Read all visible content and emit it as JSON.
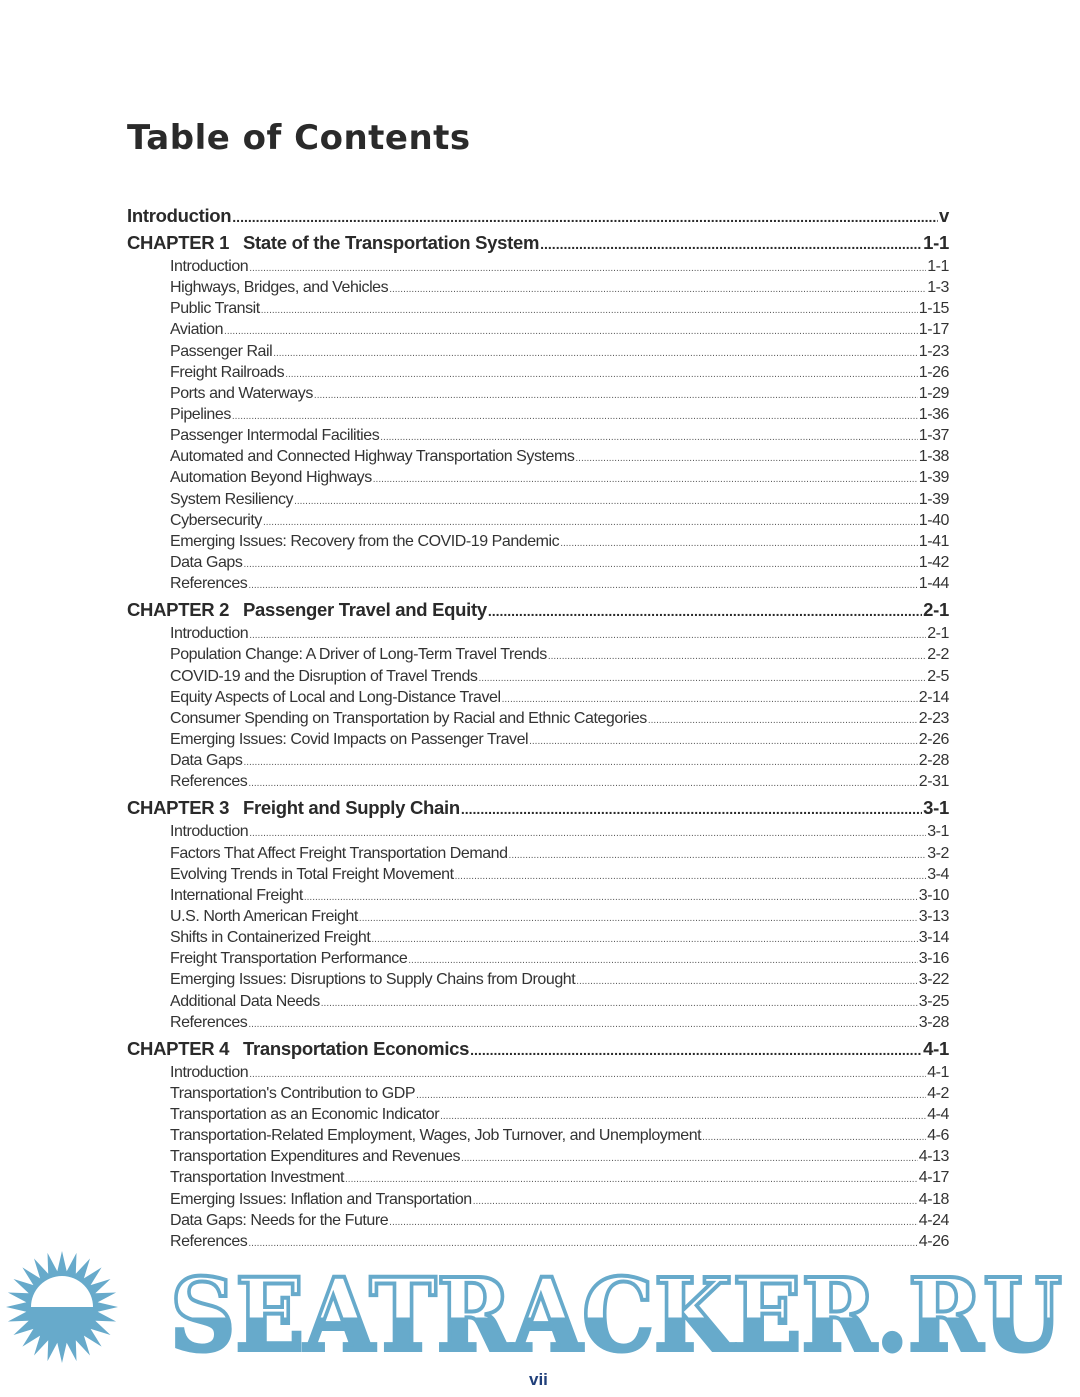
{
  "title": "Table of Contents",
  "intro": {
    "label": "Introduction",
    "page": "v"
  },
  "chapters": [
    {
      "number": "CHAPTER 1",
      "title": "State of the Transportation System",
      "page": "1-1",
      "items": [
        {
          "label": "Introduction",
          "page": "1-1"
        },
        {
          "label": "Highways, Bridges, and Vehicles",
          "page": "1-3"
        },
        {
          "label": "Public Transit",
          "page": "1-15"
        },
        {
          "label": "Aviation",
          "page": "1-17"
        },
        {
          "label": "Passenger Rail",
          "page": "1-23"
        },
        {
          "label": "Freight Railroads",
          "page": "1-26"
        },
        {
          "label": "Ports and Waterways",
          "page": "1-29"
        },
        {
          "label": "Pipelines",
          "page": "1-36"
        },
        {
          "label": "Passenger Intermodal Facilities",
          "page": "1-37"
        },
        {
          "label": "Automated and Connected Highway Transportation Systems",
          "page": "1-38"
        },
        {
          "label": "Automation Beyond Highways",
          "page": "1-39"
        },
        {
          "label": "System Resiliency",
          "page": "1-39"
        },
        {
          "label": "Cybersecurity",
          "page": "1-40"
        },
        {
          "label": "Emerging Issues: Recovery from the COVID-19 Pandemic",
          "page": "1-41"
        },
        {
          "label": "Data Gaps",
          "page": "1-42"
        },
        {
          "label": "References",
          "page": "1-44"
        }
      ]
    },
    {
      "number": "CHAPTER 2",
      "title": "Passenger Travel and Equity",
      "page": "2-1",
      "items": [
        {
          "label": "Introduction",
          "page": "2-1"
        },
        {
          "label": "Population Change: A Driver of Long-Term Travel Trends",
          "page": "2-2"
        },
        {
          "label": "COVID-19 and the Disruption of Travel Trends",
          "page": "2-5"
        },
        {
          "label": "Equity Aspects of Local and Long-Distance Travel",
          "page": "2-14"
        },
        {
          "label": "Consumer Spending on Transportation by Racial and Ethnic Categories",
          "page": "2-23"
        },
        {
          "label": "Emerging Issues: Covid Impacts on Passenger Travel",
          "page": "2-26"
        },
        {
          "label": "Data Gaps",
          "page": "2-28"
        },
        {
          "label": "References",
          "page": "2-31"
        }
      ]
    },
    {
      "number": "CHAPTER 3",
      "title": "Freight and Supply Chain",
      "page": "3-1",
      "items": [
        {
          "label": "Introduction",
          "page": "3-1"
        },
        {
          "label": "Factors That Affect Freight Transportation Demand",
          "page": "3-2"
        },
        {
          "label": "Evolving Trends in Total Freight Movement",
          "page": "3-4"
        },
        {
          "label": "International Freight",
          "page": "3-10"
        },
        {
          "label": "U.S. North American Freight",
          "page": "3-13"
        },
        {
          "label": "Shifts in Containerized Freight",
          "page": "3-14"
        },
        {
          "label": "Freight Transportation Performance",
          "page": "3-16"
        },
        {
          "label": "Emerging Issues: Disruptions to Supply Chains from Drought",
          "page": "3-22"
        },
        {
          "label": "Additional Data Needs",
          "page": "3-25"
        },
        {
          "label": "References",
          "page": "3-28"
        }
      ]
    },
    {
      "number": "CHAPTER 4",
      "title": "Transportation Economics",
      "page": "4-1",
      "items": [
        {
          "label": "Introduction",
          "page": "4-1"
        },
        {
          "label": "Transportation's Contribution to GDP",
          "page": "4-2"
        },
        {
          "label": "Transportation as an Economic Indicator",
          "page": "4-4"
        },
        {
          "label": "Transportation-Related Employment, Wages, Job Turnover, and Unemployment",
          "page": "4-6"
        },
        {
          "label": "Transportation Expenditures and Revenues",
          "page": "4-13"
        },
        {
          "label": "Transportation Investment",
          "page": "4-17"
        },
        {
          "label": "Emerging Issues: Inflation and Transportation",
          "page": "4-18"
        },
        {
          "label": "Data Gaps: Needs for the Future",
          "page": "4-24"
        },
        {
          "label": "References",
          "page": "4-26"
        }
      ]
    }
  ],
  "page_number": "vii",
  "watermark": {
    "text": "SEATRACKER.RU",
    "icon": "sun-icon",
    "color": "#67aacb"
  }
}
